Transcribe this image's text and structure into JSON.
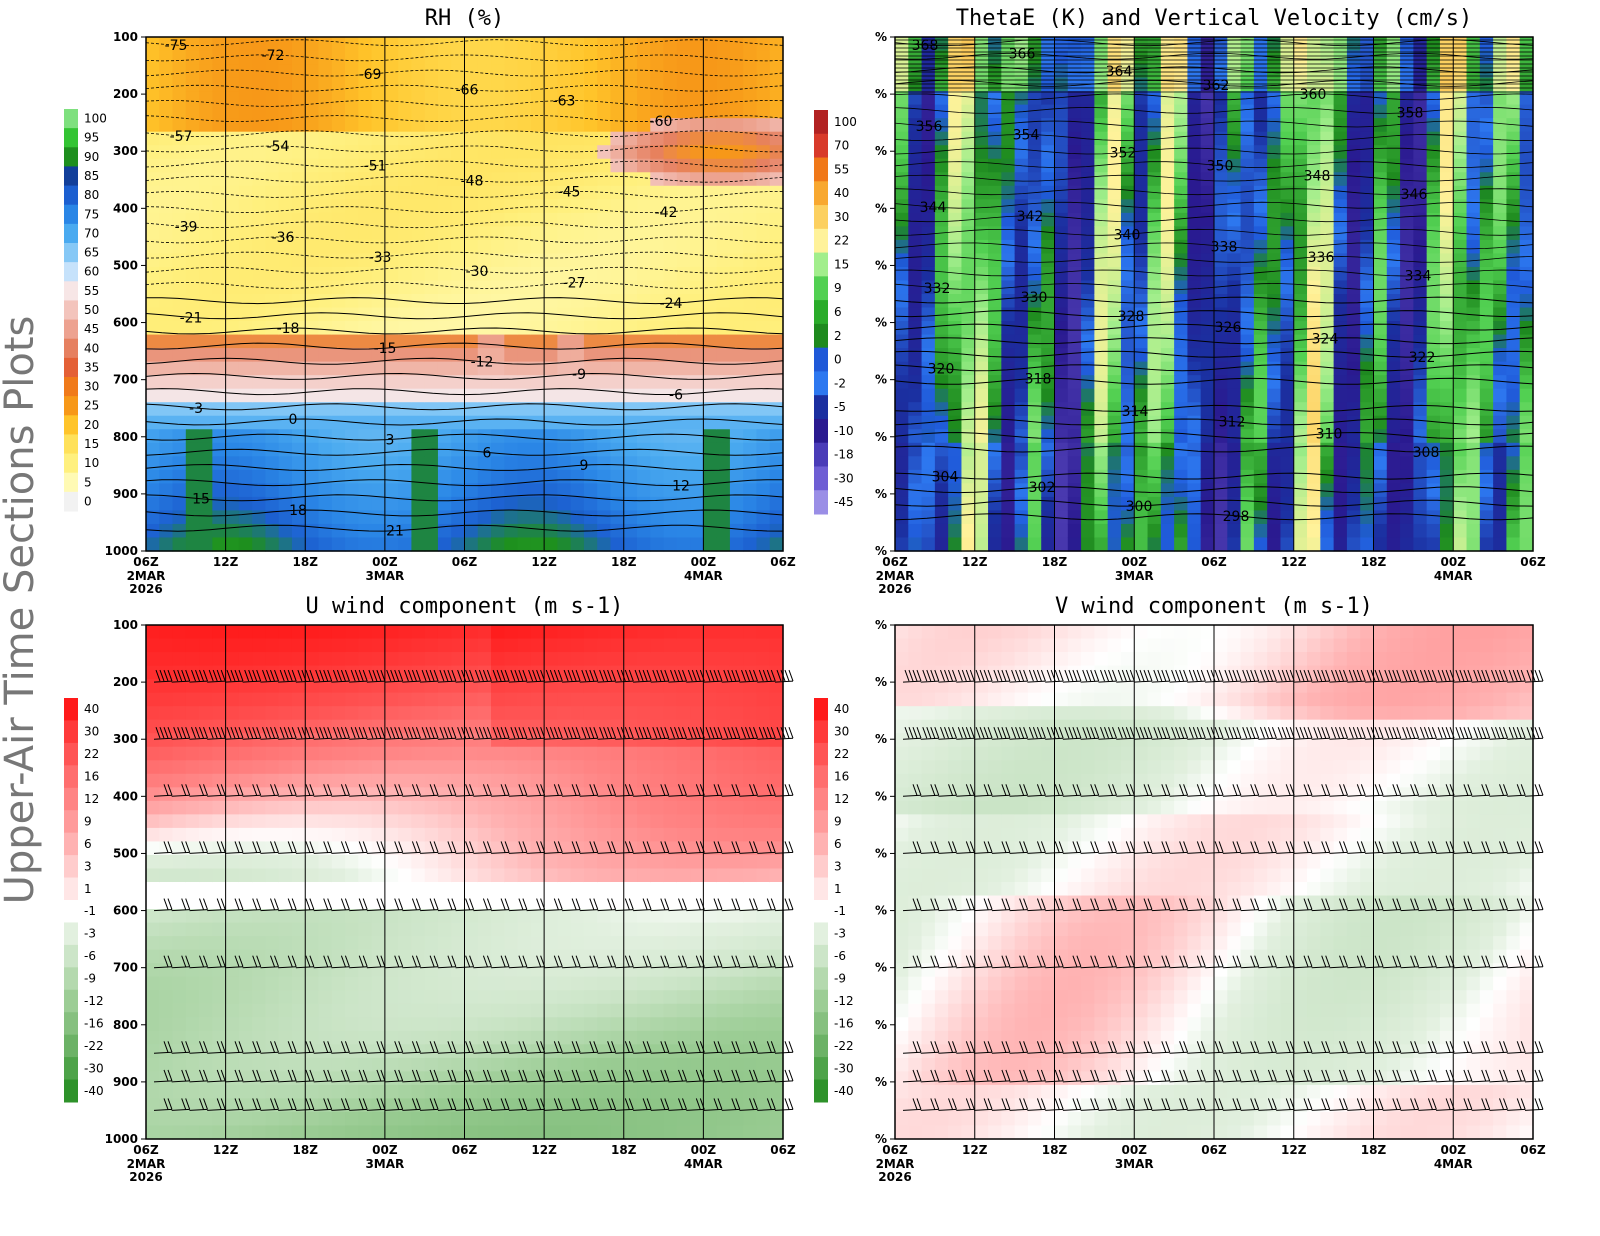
{
  "figure": {
    "side_title": "Upper-Air Time Sections Plots"
  },
  "chart_data": [
    {
      "type": "heatmap",
      "title": "RH (%)",
      "x_tick_labels": [
        "06Z",
        "12Z",
        "18Z",
        "00Z",
        "06Z",
        "12Z",
        "18Z",
        "00Z",
        "06Z"
      ],
      "x_date_labels": [
        {
          "under": "06Z",
          "lines": [
            "2MAR",
            "2026"
          ]
        },
        {
          "under": "00Z",
          "lines": [
            "3MAR"
          ]
        },
        {
          "under": "00Z",
          "lines": [
            "4MAR"
          ]
        }
      ],
      "y_tick_labels": [
        "100",
        "200",
        "300",
        "400",
        "500",
        "600",
        "700",
        "800",
        "900",
        "1000"
      ],
      "ylim": [
        100,
        1000
      ],
      "colorbar": {
        "labels": [
          "100",
          "95",
          "90",
          "85",
          "80",
          "75",
          "70",
          "65",
          "60",
          "55",
          "50",
          "45",
          "40",
          "35",
          "30",
          "25",
          "20",
          "15",
          "10",
          "5",
          "0"
        ],
        "colors": [
          "#7ee07e",
          "#33c433",
          "#1e8f1e",
          "#123f9a",
          "#1c5fd0",
          "#2a86e6",
          "#4aaaf0",
          "#86c8f6",
          "#c6e2fb",
          "#f7e6e6",
          "#f3c4bc",
          "#eda290",
          "#e68060",
          "#e46036",
          "#f07a1a",
          "#f79818",
          "#ffc42a",
          "#ffe15a",
          "#fff07e",
          "#fffab4",
          "#f2f2f2"
        ]
      },
      "temperature_contours_c": [
        "-75",
        "-72",
        "-69",
        "-66",
        "-63",
        "-60",
        "-57",
        "-54",
        "-51",
        "-48",
        "-45",
        "-42",
        "-39",
        "-36",
        "-33",
        "-30",
        "-27",
        "-24",
        "-21",
        "-18",
        "-15",
        "-12",
        "-9",
        "-6",
        "-3",
        "0",
        "3",
        "6",
        "9",
        "12",
        "15",
        "18",
        "21"
      ]
    },
    {
      "type": "heatmap",
      "title": "ThetaE (K) and Vertical Velocity (cm/s)",
      "x_tick_labels": [
        "06Z",
        "12Z",
        "18Z",
        "00Z",
        "06Z",
        "12Z",
        "18Z",
        "00Z",
        "06Z"
      ],
      "x_date_labels": [
        {
          "under": "06Z",
          "lines": [
            "2MAR",
            "2026"
          ]
        },
        {
          "under": "00Z",
          "lines": [
            "3MAR"
          ]
        },
        {
          "under": "00Z",
          "lines": [
            "4MAR"
          ]
        }
      ],
      "y_tick_labels": [
        "%",
        "%",
        "%",
        "%",
        "%",
        "%",
        "%",
        "%",
        "%",
        "%"
      ],
      "colorbar": {
        "labels": [
          "100",
          "70",
          "55",
          "40",
          "30",
          "22",
          "15",
          "9",
          "6",
          "2",
          "0",
          "-2",
          "-5",
          "-10",
          "-18",
          "-30",
          "-45"
        ],
        "colors": [
          "#b22222",
          "#d83a2a",
          "#f07818",
          "#f8a830",
          "#fcd060",
          "#fff29a",
          "#a2ee8c",
          "#52d052",
          "#2aac2a",
          "#1e8a1e",
          "#1f59d8",
          "#2d78f0",
          "#1b2fa0",
          "#2a1a90",
          "#4a3cb8",
          "#6e5ed4",
          "#9a8ee6"
        ]
      },
      "theta_e_contours_k": [
        "368",
        "366",
        "364",
        "362",
        "360",
        "358",
        "356",
        "354",
        "352",
        "350",
        "348",
        "346",
        "344",
        "342",
        "340",
        "338",
        "336",
        "334",
        "332",
        "330",
        "328",
        "326",
        "324",
        "322",
        "320",
        "318",
        "314",
        "312",
        "310",
        "308",
        "304",
        "302",
        "300",
        "298"
      ]
    },
    {
      "type": "heatmap",
      "title": "U wind component (m s-1)",
      "x_tick_labels": [
        "06Z",
        "12Z",
        "18Z",
        "00Z",
        "06Z",
        "12Z",
        "18Z",
        "00Z",
        "06Z"
      ],
      "x_date_labels": [
        {
          "under": "06Z",
          "lines": [
            "2MAR",
            "2026"
          ]
        },
        {
          "under": "00Z",
          "lines": [
            "3MAR"
          ]
        },
        {
          "under": "00Z",
          "lines": [
            "4MAR"
          ]
        }
      ],
      "y_tick_labels": [
        "100",
        "200",
        "300",
        "400",
        "500",
        "600",
        "700",
        "800",
        "900",
        "1000"
      ],
      "ylim": [
        100,
        1000
      ],
      "colorbar": {
        "labels": [
          "40",
          "30",
          "22",
          "16",
          "12",
          "9",
          "6",
          "3",
          "1",
          "-1",
          "-3",
          "-6",
          "-9",
          "-12",
          "-16",
          "-22",
          "-30",
          "-40"
        ],
        "colors": [
          "#ff1a1a",
          "#ff3a3a",
          "#ff5555",
          "#ff6e6e",
          "#ff8484",
          "#ff9a9a",
          "#ffb2b2",
          "#ffcccc",
          "#ffe6e6",
          "#ffffff",
          "#e2f0df",
          "#cce5c8",
          "#b4d9ae",
          "#9ccd95",
          "#86c07f",
          "#6cb266",
          "#4ea349",
          "#2e922a"
        ]
      },
      "barb_levels_hpa": [
        200,
        300,
        400,
        500,
        600,
        700,
        850,
        900,
        950
      ]
    },
    {
      "type": "heatmap",
      "title": "V wind component (m s-1)",
      "x_tick_labels": [
        "06Z",
        "12Z",
        "18Z",
        "00Z",
        "06Z",
        "12Z",
        "18Z",
        "00Z",
        "06Z"
      ],
      "x_date_labels": [
        {
          "under": "06Z",
          "lines": [
            "2MAR",
            "2026"
          ]
        },
        {
          "under": "00Z",
          "lines": [
            "3MAR"
          ]
        },
        {
          "under": "00Z",
          "lines": [
            "4MAR"
          ]
        }
      ],
      "y_tick_labels": [
        "%",
        "%",
        "%",
        "%",
        "%",
        "%",
        "%",
        "%",
        "%",
        "%"
      ],
      "colorbar": {
        "labels": [
          "40",
          "30",
          "22",
          "16",
          "12",
          "9",
          "6",
          "3",
          "1",
          "-1",
          "-3",
          "-6",
          "-9",
          "-12",
          "-16",
          "-22",
          "-30",
          "-40"
        ],
        "colors": [
          "#ff1a1a",
          "#ff3a3a",
          "#ff5555",
          "#ff6e6e",
          "#ff8484",
          "#ff9a9a",
          "#ffb2b2",
          "#ffcccc",
          "#ffe6e6",
          "#ffffff",
          "#e2f0df",
          "#cce5c8",
          "#b4d9ae",
          "#9ccd95",
          "#86c07f",
          "#6cb266",
          "#4ea349",
          "#2e922a"
        ]
      },
      "barb_levels_hpa": [
        200,
        300,
        400,
        500,
        600,
        700,
        850,
        900,
        950
      ]
    }
  ]
}
